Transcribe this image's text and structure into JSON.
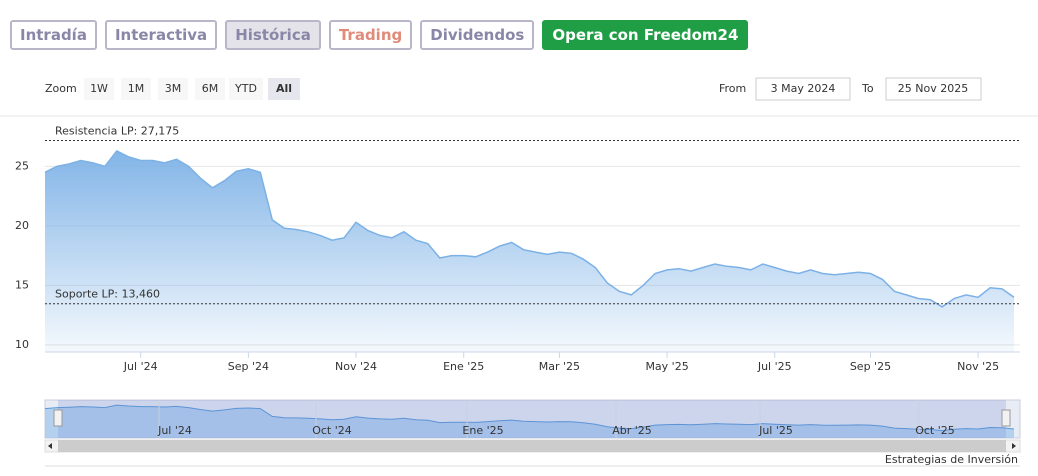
{
  "tabs": [
    {
      "label": "Intradía",
      "color": "#8a86a8"
    },
    {
      "label": "Interactiva",
      "color": "#8a86a8"
    },
    {
      "label": "Histórica",
      "color": "#8a86a8",
      "active": true
    },
    {
      "label": "Trading",
      "color": "#e08b7a"
    },
    {
      "label": "Dividendos",
      "color": "#8a86a8"
    },
    {
      "label": "Opera con Freedom24",
      "color": "#ffffff",
      "background": "#1f9e45"
    }
  ],
  "range_selector": {
    "zoom_label": "Zoom",
    "buttons": [
      "1W",
      "1M",
      "3M",
      "6M",
      "YTD",
      "All"
    ],
    "active": "All",
    "from_label": "From",
    "from": "3 May 2024",
    "to_label": "To",
    "to": "25 Nov 2025"
  },
  "chart_data": {
    "type": "area",
    "color": "#7cb1e6",
    "categories": [
      null,
      null,
      null,
      null,
      null,
      null,
      null,
      null,
      "Jul '24",
      null,
      null,
      null,
      null,
      null,
      null,
      null,
      null,
      "Sep '24",
      null,
      null,
      null,
      null,
      null,
      null,
      null,
      null,
      "Nov '24",
      null,
      null,
      null,
      null,
      null,
      null,
      null,
      null,
      "Ene '25",
      null,
      null,
      null,
      null,
      null,
      null,
      null,
      "Mar '25",
      null,
      null,
      null,
      null,
      null,
      null,
      null,
      null,
      "May '25",
      null,
      null,
      null,
      null,
      null,
      null,
      null,
      null,
      "Jul '25",
      null,
      null,
      null,
      null,
      null,
      null,
      null,
      "Sep '25",
      null,
      null,
      null,
      null,
      null,
      null,
      null,
      null,
      "Nov '25",
      null,
      null,
      null
    ],
    "values": [
      24.5,
      25.0,
      25.2,
      25.5,
      25.3,
      25.0,
      26.3,
      25.8,
      25.5,
      25.5,
      25.3,
      25.6,
      25.0,
      24.0,
      23.2,
      23.8,
      24.6,
      24.8,
      24.5,
      20.5,
      19.8,
      19.7,
      19.5,
      19.2,
      18.8,
      19.0,
      20.3,
      19.6,
      19.2,
      19.0,
      19.5,
      18.8,
      18.5,
      17.3,
      17.5,
      17.5,
      17.4,
      17.8,
      18.3,
      18.6,
      18.0,
      17.8,
      17.6,
      17.8,
      17.7,
      17.2,
      16.5,
      15.2,
      14.5,
      14.2,
      15.0,
      16.0,
      16.3,
      16.4,
      16.2,
      16.5,
      16.8,
      16.6,
      16.5,
      16.3,
      16.8,
      16.5,
      16.2,
      16.0,
      16.3,
      16.0,
      15.9,
      16.0,
      16.1,
      16.0,
      15.5,
      14.5,
      14.2,
      13.9,
      13.8,
      13.2,
      13.9,
      14.2,
      14.0,
      14.8,
      14.7,
      14.0
    ],
    "ylim": [
      9.4,
      28.9
    ],
    "yticks": [
      10,
      15,
      20,
      25
    ],
    "grid": true,
    "reference_lines": [
      {
        "label": "Resistencia LP: 27,175",
        "value": 27.175
      },
      {
        "label": "Soporte LP: 13,460",
        "value": 13.46
      }
    ]
  },
  "navigator": {
    "labels": [
      "Jul '24",
      "Oct '24",
      "Ene '25",
      "Abr '25",
      "Jul '25",
      "Oct '25"
    ]
  },
  "footer": "Estrategias de Inversión"
}
